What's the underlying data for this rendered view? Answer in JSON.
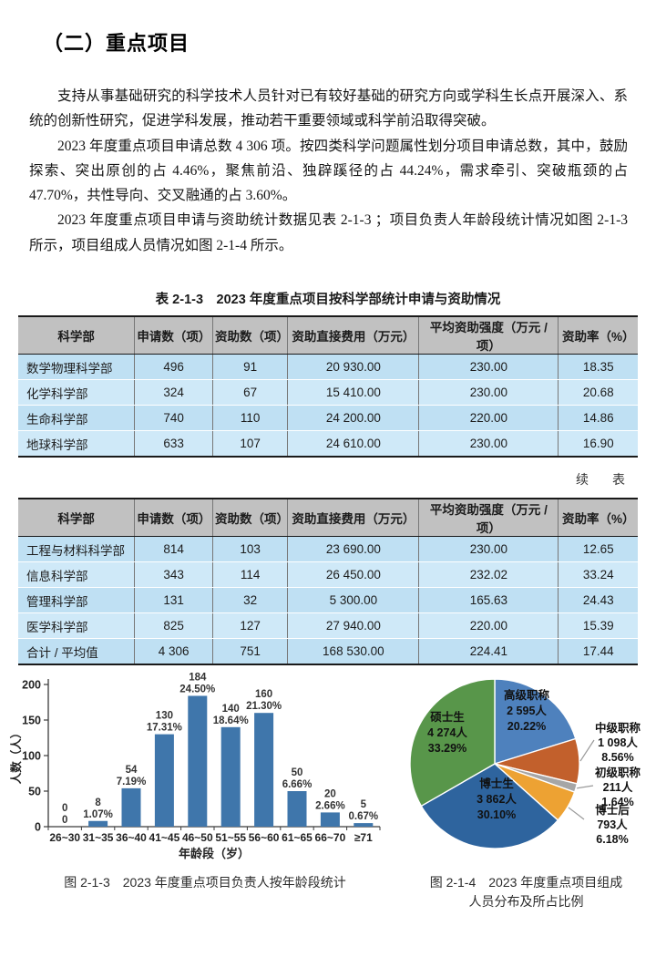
{
  "doc": {
    "title": "（二）重点项目",
    "paragraphs": [
      "支持从事基础研究的科学技术人员针对已有较好基础的研究方向或学科生长点开展深入、系统的创新性研究，促进学科发展，推动若干重要领域或科学前沿取得突破。",
      "2023 年度重点项目申请总数 4 306 项。按四类科学问题属性划分项目申请总数，其中，鼓励探索、突出原创的占 4.46%，聚焦前沿、独辟蹊径的占 44.24%，需求牵引、突破瓶颈的占 47.70%，共性导向、交叉融通的占 3.60%。",
      "2023 年度重点项目申请与资助统计数据见表 2-1-3 ；项目负责人年龄段统计情况如图 2-1-3 所示，项目组成人员情况如图 2-1-4 所示。"
    ]
  },
  "table": {
    "title": "表 2-1-3　2023 年度重点项目按科学部统计申请与资助情况",
    "continued_label": "续　表",
    "headers": [
      "科学部",
      "申请数（项）",
      "资助数（项）",
      "资助直接费用（万元）",
      "平均资助强度（万元 / 项）",
      "资助率（%）"
    ],
    "col_widths_pct": [
      18.8,
      12.6,
      12.1,
      21.2,
      22.5,
      12.8
    ],
    "part1_rows": [
      [
        "数学物理科学部",
        "496",
        "91",
        "20 930.00",
        "230.00",
        "18.35"
      ],
      [
        "化学科学部",
        "324",
        "67",
        "15 410.00",
        "230.00",
        "20.68"
      ],
      [
        "生命科学部",
        "740",
        "110",
        "24 200.00",
        "220.00",
        "14.86"
      ],
      [
        "地球科学部",
        "633",
        "107",
        "24 610.00",
        "230.00",
        "16.90"
      ]
    ],
    "part2_rows": [
      [
        "工程与材料科学部",
        "814",
        "103",
        "23 690.00",
        "230.00",
        "12.65"
      ],
      [
        "信息科学部",
        "343",
        "114",
        "26 450.00",
        "232.02",
        "33.24"
      ],
      [
        "管理科学部",
        "131",
        "32",
        "5 300.00",
        "165.63",
        "24.43"
      ],
      [
        "医学科学部",
        "825",
        "127",
        "27 940.00",
        "220.00",
        "15.39"
      ],
      [
        "合计 / 平均值",
        "4 306",
        "751",
        "168 530.00",
        "224.41",
        "17.44"
      ]
    ],
    "header_bg": "#c1c1c1",
    "row_colors": [
      "#bfe0f3",
      "#cfe9f8"
    ]
  },
  "chart_data": [
    {
      "type": "bar",
      "title": "",
      "categories": [
        "26~30",
        "31~35",
        "36~40",
        "41~45",
        "46~50",
        "51~55",
        "56~60",
        "61~65",
        "66~70",
        "≥71"
      ],
      "values": [
        0,
        8,
        54,
        130,
        184,
        140,
        160,
        50,
        20,
        5
      ],
      "count_labels": [
        "0",
        "8",
        "54",
        "130",
        "184",
        "140",
        "160",
        "50",
        "20",
        "5"
      ],
      "percent_labels": [
        "0",
        "1.07%",
        "7.19%",
        "17.31%",
        "24.50%",
        "18.64%",
        "21.30%",
        "6.66%",
        "2.66%",
        "0.67%"
      ],
      "xlabel": "年龄段（岁）",
      "ylabel": "人数（人）",
      "yticks": [
        0,
        50,
        100,
        150,
        200
      ],
      "ylim": [
        0,
        205
      ],
      "grid": false,
      "bar_color": "#3f76ab",
      "axis_color": "#3a3a3a"
    },
    {
      "type": "pie",
      "title": "",
      "slices": [
        {
          "label": "高级职称",
          "count": "2 595人",
          "percent": "20.22%",
          "value": 20.22,
          "color": "#4e81bd",
          "label_pos": "inside"
        },
        {
          "label": "中级职称",
          "count": "1 098人",
          "percent": "8.56%",
          "value": 8.56,
          "color": "#c2602c",
          "label_pos": "outside"
        },
        {
          "label": "初级职称",
          "count": "211人",
          "percent": "1.64%",
          "value": 1.64,
          "color": "#a6a6a6",
          "label_pos": "outside"
        },
        {
          "label": "博士后",
          "count": "793人",
          "percent": "6.18%",
          "value": 6.18,
          "color": "#eda233",
          "label_pos": "outside"
        },
        {
          "label": "博士生",
          "count": "3 862人",
          "percent": "30.10%",
          "value": 30.1,
          "color": "#2e649e",
          "label_pos": "inside"
        },
        {
          "label": "硕士生",
          "count": "4 274人",
          "percent": "33.29%",
          "value": 33.29,
          "color": "#58964a",
          "label_pos": "inside"
        }
      ],
      "start_angle_deg": 0,
      "direction": "clockwise",
      "leader_line_color": "#999999"
    }
  ],
  "figures": {
    "fig1_caption": "图 2-1-3　2023 年度重点项目负责人按年龄段统计",
    "fig2_caption_line1": "图 2-1-4　2023 年度重点项目组成",
    "fig2_caption_line2": "人员分布及所占比例"
  }
}
